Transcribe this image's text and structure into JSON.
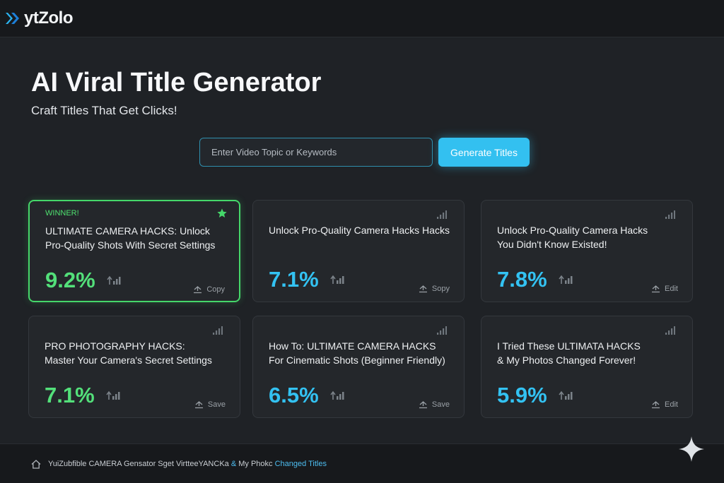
{
  "app": {
    "logo_text": "ytZolo"
  },
  "hero": {
    "title": "AI Viral Title Generator",
    "subtitle": "Craft Titles That Get Clicks!"
  },
  "search": {
    "placeholder": "Enter Video Topic or Keywords",
    "value": ""
  },
  "generate_button": "Generate Titles",
  "cards": [
    {
      "badge": "WINNER!",
      "title_line1": "ULTIMATE CAMERA HACKS: Unlock",
      "title_line2": "Pro-Quality Shots With Secret Settings",
      "percent": "9.2%",
      "action": "Copy"
    },
    {
      "title_line1": "Unlock Pro-Quality Camera Hacks Hacks",
      "title_line2": "",
      "percent": "7.1%",
      "action": "Sopy"
    },
    {
      "title_line1": "Unlock Pro-Quality Camera Hacks",
      "title_line2": "You Didn't Know Existed!",
      "percent": "7.8%",
      "action": "Edit"
    },
    {
      "title_line1": "PRO PHOTOGRAPHY HACKS:",
      "title_line2": "Master Your Camera's Secret Settings",
      "percent": "7.1%",
      "action": "Save"
    },
    {
      "title_line1": "How To: ULTIMATE CAMERA HACKS",
      "title_line2": "For Cinematic Shots (Beginner Friendly)",
      "percent": "6.5%",
      "action": "Save"
    },
    {
      "title_line1": "I Tried These ULTIMATA HACKS",
      "title_line2": "& My Photos Changed Forever!",
      "percent": "5.9%",
      "action": "Edit"
    }
  ],
  "footer": {
    "text_main": "YuiZubfible CAMERA Gensator   Sget VirtteeYANCKa",
    "text_amp": "&",
    "text_tail": "My Phokc",
    "text_link": "Changed Titles"
  },
  "colors": {
    "accent_blue": "#33c0f0",
    "winner_green": "#45d76a",
    "background": "#1f2226"
  }
}
